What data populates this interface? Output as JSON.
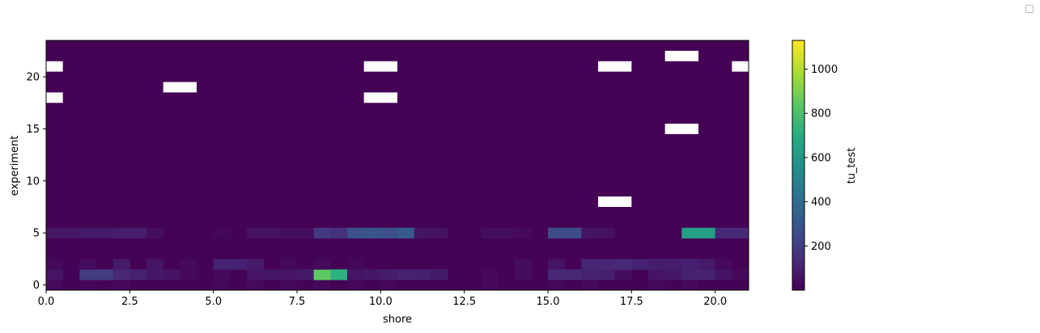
{
  "chart_data": {
    "type": "heatmap",
    "xlabel": "shore",
    "ylabel": "experiment",
    "colorbar_label": "tu_test",
    "colormap": "viridis",
    "xlim": [
      0,
      21
    ],
    "ylim": [
      -0.5,
      23.5
    ],
    "x_ticks": [
      0.0,
      2.5,
      5.0,
      7.5,
      10.0,
      12.5,
      15.0,
      17.5,
      20.0
    ],
    "x_tick_labels": [
      "0.0",
      "2.5",
      "5.0",
      "7.5",
      "10.0",
      "12.5",
      "15.0",
      "17.5",
      "20.0"
    ],
    "y_ticks": [
      0,
      5,
      10,
      15,
      20
    ],
    "y_tick_labels": [
      "0",
      "5",
      "10",
      "15",
      "20"
    ],
    "colorbar_range": [
      0,
      1130
    ],
    "colorbar_ticks": [
      200,
      400,
      600,
      800,
      1000
    ],
    "colorbar_tick_labels": [
      "200",
      "400",
      "600",
      "800",
      "1000"
    ],
    "background_value": 5,
    "cells": [
      {
        "x": 0,
        "y": 0,
        "v": 30
      },
      {
        "x": 1,
        "y": 0,
        "v": 20
      },
      {
        "x": 2,
        "y": 0,
        "v": 20
      },
      {
        "x": 5,
        "y": 0,
        "v": 20
      },
      {
        "x": 6,
        "y": 0,
        "v": 30
      },
      {
        "x": 7,
        "y": 0,
        "v": 20
      },
      {
        "x": 8,
        "y": 0,
        "v": 25
      },
      {
        "x": 9,
        "y": 0,
        "v": 20
      },
      {
        "x": 10,
        "y": 0,
        "v": 20
      },
      {
        "x": 13,
        "y": 0,
        "v": 25
      },
      {
        "x": 15,
        "y": 0,
        "v": 20
      },
      {
        "x": 16,
        "y": 0,
        "v": 25
      },
      {
        "x": 18,
        "y": 0,
        "v": 20
      },
      {
        "x": 19,
        "y": 0,
        "v": 25
      },
      {
        "x": 0,
        "y": 1,
        "v": 60
      },
      {
        "x": 1,
        "y": 1,
        "v": 200
      },
      {
        "x": 1.5,
        "y": 1,
        "v": 200
      },
      {
        "x": 2,
        "y": 1,
        "v": 130
      },
      {
        "x": 2.5,
        "y": 1,
        "v": 110
      },
      {
        "x": 3,
        "y": 1,
        "v": 70
      },
      {
        "x": 3.5,
        "y": 1,
        "v": 60
      },
      {
        "x": 4,
        "y": 1,
        "v": 30
      },
      {
        "x": 5,
        "y": 1,
        "v": 30
      },
      {
        "x": 6,
        "y": 1,
        "v": 60
      },
      {
        "x": 6.5,
        "y": 1,
        "v": 70
      },
      {
        "x": 7,
        "y": 1,
        "v": 60
      },
      {
        "x": 7.5,
        "y": 1,
        "v": 80
      },
      {
        "x": 8,
        "y": 1,
        "v": 850
      },
      {
        "x": 8.5,
        "y": 1,
        "v": 720
      },
      {
        "x": 9,
        "y": 1,
        "v": 60
      },
      {
        "x": 9.5,
        "y": 1,
        "v": 70
      },
      {
        "x": 10,
        "y": 1,
        "v": 90
      },
      {
        "x": 10.5,
        "y": 1,
        "v": 110
      },
      {
        "x": 11,
        "y": 1,
        "v": 100
      },
      {
        "x": 11.5,
        "y": 1,
        "v": 80
      },
      {
        "x": 13,
        "y": 1,
        "v": 30
      },
      {
        "x": 14,
        "y": 1,
        "v": 40
      },
      {
        "x": 15,
        "y": 1,
        "v": 130
      },
      {
        "x": 15.5,
        "y": 1,
        "v": 130
      },
      {
        "x": 16,
        "y": 1,
        "v": 110
      },
      {
        "x": 16.5,
        "y": 1,
        "v": 100
      },
      {
        "x": 17,
        "y": 1,
        "v": 40
      },
      {
        "x": 18,
        "y": 1,
        "v": 60
      },
      {
        "x": 18.5,
        "y": 1,
        "v": 70
      },
      {
        "x": 19,
        "y": 1,
        "v": 110
      },
      {
        "x": 19.5,
        "y": 1,
        "v": 110
      },
      {
        "x": 20,
        "y": 1,
        "v": 60
      },
      {
        "x": 20.5,
        "y": 1,
        "v": 30
      },
      {
        "x": 0,
        "y": 2,
        "v": 30
      },
      {
        "x": 1,
        "y": 2,
        "v": 40
      },
      {
        "x": 2,
        "y": 2,
        "v": 80
      },
      {
        "x": 3,
        "y": 2,
        "v": 60
      },
      {
        "x": 4,
        "y": 2,
        "v": 30
      },
      {
        "x": 5,
        "y": 2,
        "v": 110
      },
      {
        "x": 5.5,
        "y": 2,
        "v": 110
      },
      {
        "x": 6,
        "y": 2,
        "v": 80
      },
      {
        "x": 7,
        "y": 2,
        "v": 30
      },
      {
        "x": 8,
        "y": 2,
        "v": 30
      },
      {
        "x": 9,
        "y": 2,
        "v": 20
      },
      {
        "x": 14,
        "y": 2,
        "v": 40
      },
      {
        "x": 15,
        "y": 2,
        "v": 60
      },
      {
        "x": 16,
        "y": 2,
        "v": 120
      },
      {
        "x": 16.5,
        "y": 2,
        "v": 120
      },
      {
        "x": 17,
        "y": 2,
        "v": 130
      },
      {
        "x": 17.5,
        "y": 2,
        "v": 110
      },
      {
        "x": 18,
        "y": 2,
        "v": 90
      },
      {
        "x": 18.5,
        "y": 2,
        "v": 90
      },
      {
        "x": 19,
        "y": 2,
        "v": 100
      },
      {
        "x": 19.5,
        "y": 2,
        "v": 80
      },
      {
        "x": 20,
        "y": 2,
        "v": 30
      },
      {
        "x": 0,
        "y": 5,
        "v": 70
      },
      {
        "x": 0.5,
        "y": 5,
        "v": 70
      },
      {
        "x": 1,
        "y": 5,
        "v": 80
      },
      {
        "x": 1.5,
        "y": 5,
        "v": 80
      },
      {
        "x": 2,
        "y": 5,
        "v": 90
      },
      {
        "x": 2.5,
        "y": 5,
        "v": 90
      },
      {
        "x": 3,
        "y": 5,
        "v": 40
      },
      {
        "x": 5,
        "y": 5,
        "v": 20
      },
      {
        "x": 6,
        "y": 5,
        "v": 50
      },
      {
        "x": 6.5,
        "y": 5,
        "v": 50
      },
      {
        "x": 7,
        "y": 5,
        "v": 40
      },
      {
        "x": 7.5,
        "y": 5,
        "v": 40
      },
      {
        "x": 8,
        "y": 5,
        "v": 190
      },
      {
        "x": 8.5,
        "y": 5,
        "v": 160
      },
      {
        "x": 9,
        "y": 5,
        "v": 280
      },
      {
        "x": 9.5,
        "y": 5,
        "v": 300
      },
      {
        "x": 10,
        "y": 5,
        "v": 280
      },
      {
        "x": 10.5,
        "y": 5,
        "v": 320
      },
      {
        "x": 11,
        "y": 5,
        "v": 60
      },
      {
        "x": 11.5,
        "y": 5,
        "v": 50
      },
      {
        "x": 13,
        "y": 5,
        "v": 40
      },
      {
        "x": 13.5,
        "y": 5,
        "v": 40
      },
      {
        "x": 14,
        "y": 5,
        "v": 30
      },
      {
        "x": 15,
        "y": 5,
        "v": 260
      },
      {
        "x": 15.5,
        "y": 5,
        "v": 260
      },
      {
        "x": 16,
        "y": 5,
        "v": 60
      },
      {
        "x": 16.5,
        "y": 5,
        "v": 50
      },
      {
        "x": 19,
        "y": 5,
        "v": 630
      },
      {
        "x": 19.5,
        "y": 5,
        "v": 630
      },
      {
        "x": 20,
        "y": 5,
        "v": 130
      },
      {
        "x": 20.5,
        "y": 5,
        "v": 130
      }
    ],
    "missing_cells": [
      {
        "x": 0,
        "y": 18
      },
      {
        "x": 0,
        "y": 21
      },
      {
        "x": 4,
        "y": 19
      },
      {
        "x": 10,
        "y": 18
      },
      {
        "x": 10,
        "y": 21
      },
      {
        "x": 17,
        "y": 8
      },
      {
        "x": 17,
        "y": 21
      },
      {
        "x": 19,
        "y": 15
      },
      {
        "x": 19,
        "y": 22
      },
      {
        "x": 21,
        "y": 21
      }
    ]
  }
}
